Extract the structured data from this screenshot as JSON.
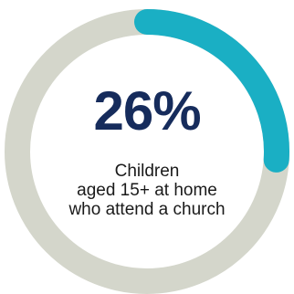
{
  "chart_data": {
    "type": "pie",
    "values": [
      26,
      74
    ],
    "colors": {
      "highlight": "#1aafc4",
      "remainder": "#d4d6cb",
      "text_primary": "#162c5c",
      "text_secondary": "#1a1a1a"
    },
    "label": "26%",
    "caption_lines": [
      "Children",
      "aged 15+ at home",
      "who attend a church"
    ]
  }
}
